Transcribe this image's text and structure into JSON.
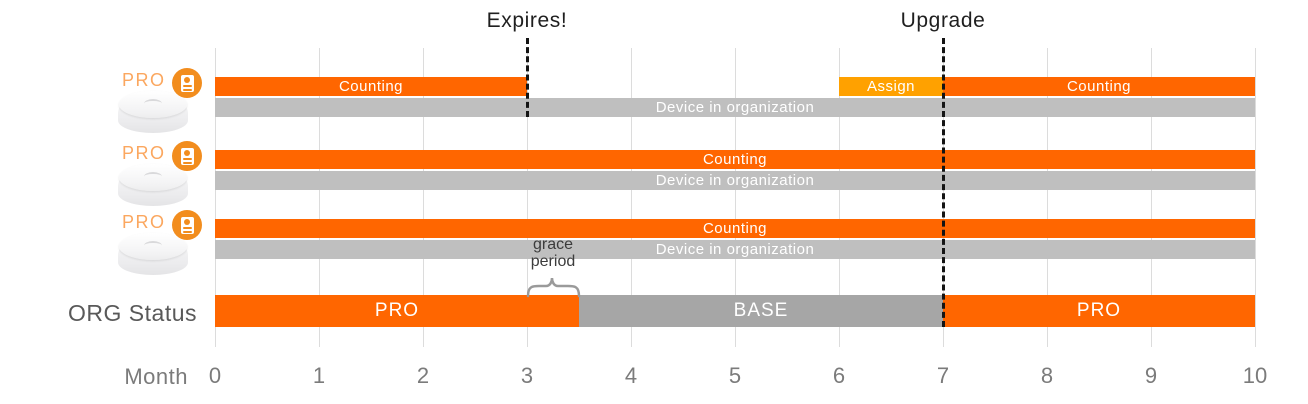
{
  "title_annotations": {
    "expires": {
      "label": "Expires!",
      "month": 3
    },
    "upgrade": {
      "label": "Upgrade",
      "month": 7
    }
  },
  "axis": {
    "label": "Month",
    "ticks": [
      0,
      1,
      2,
      3,
      4,
      5,
      6,
      7,
      8,
      9,
      10
    ]
  },
  "device_rows": [
    {
      "badge": "PRO",
      "icons": [
        "license-icon",
        "device-puck-icon"
      ],
      "license_segments": [
        {
          "label": "Counting",
          "start": 0,
          "end": 3,
          "type": "counting"
        },
        {
          "label": "Assign",
          "start": 6,
          "end": 7,
          "type": "assign"
        },
        {
          "label": "Counting",
          "start": 7,
          "end": 10,
          "type": "counting"
        }
      ],
      "presence_segments": [
        {
          "label": "Device in organization",
          "start": 0,
          "end": 10,
          "type": "presence"
        }
      ]
    },
    {
      "badge": "PRO",
      "icons": [
        "license-icon",
        "device-puck-icon"
      ],
      "license_segments": [
        {
          "label": "Counting",
          "start": 0,
          "end": 10,
          "type": "counting"
        }
      ],
      "presence_segments": [
        {
          "label": "Device in organization",
          "start": 0,
          "end": 10,
          "type": "presence"
        }
      ]
    },
    {
      "badge": "PRO",
      "icons": [
        "license-icon",
        "device-puck-icon"
      ],
      "license_segments": [
        {
          "label": "Counting",
          "start": 0,
          "end": 10,
          "type": "counting"
        }
      ],
      "presence_segments": [
        {
          "label": "Device in organization",
          "start": 0,
          "end": 10,
          "type": "presence"
        }
      ]
    }
  ],
  "grace_period": {
    "label": [
      "grace",
      "period"
    ],
    "start": 3,
    "end": 3.5
  },
  "org_status": {
    "label": "ORG Status",
    "segments": [
      {
        "label": "PRO",
        "start": 0,
        "end": 3.5,
        "type": "pro"
      },
      {
        "label": "BASE",
        "start": 3.5,
        "end": 7,
        "type": "base"
      },
      {
        "label": "PRO",
        "start": 7,
        "end": 10,
        "type": "pro"
      }
    ]
  },
  "colors": {
    "counting": "#FF6600",
    "assign": "#FFA100",
    "presence": "#BFBFBF",
    "pro": "#FF6600",
    "base": "#A6A6A6",
    "gridline": "#DCDCDC",
    "dashed_line": "#141414",
    "badge_text": "#FBA75F",
    "badge_icon_bg": "#F28D1E",
    "brace": "#9A9A9A"
  }
}
